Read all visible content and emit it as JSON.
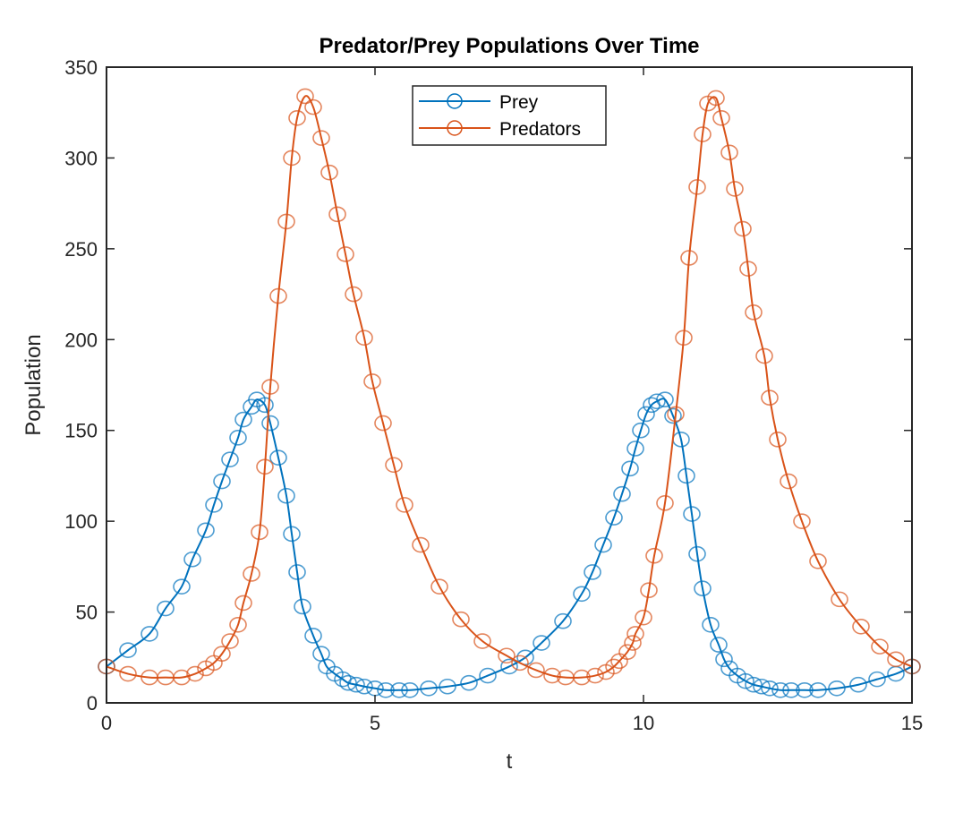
{
  "chart_data": {
    "type": "line",
    "title": "Predator/Prey Populations Over Time",
    "xlabel": "t",
    "ylabel": "Population",
    "xlim": [
      0,
      15
    ],
    "ylim": [
      0,
      350
    ],
    "xticks": [
      0,
      5,
      10,
      15
    ],
    "xtick_labels": [
      "0",
      "5",
      "10",
      "15"
    ],
    "yticks": [
      0,
      50,
      100,
      150,
      200,
      250,
      300,
      350
    ],
    "ytick_labels": [
      "0",
      "50",
      "100",
      "150",
      "200",
      "250",
      "300",
      "350"
    ],
    "grid": false,
    "legend": {
      "position": "top-center",
      "entries": [
        "Prey",
        "Predators"
      ]
    },
    "series": [
      {
        "name": "Prey",
        "color": "#0072BD",
        "marker": "circle",
        "x": [
          0,
          0.4,
          0.8,
          1.1,
          1.4,
          1.6,
          1.85,
          2.0,
          2.15,
          2.3,
          2.45,
          2.55,
          2.7,
          2.8,
          2.95,
          3.05,
          3.2,
          3.35,
          3.45,
          3.55,
          3.65,
          3.85,
          4.0,
          4.1,
          4.25,
          4.4,
          4.5,
          4.65,
          4.8,
          5.0,
          5.2,
          5.45,
          5.65,
          6.0,
          6.35,
          6.75,
          7.1,
          7.5,
          7.8,
          8.1,
          8.5,
          8.85,
          9.05,
          9.25,
          9.45,
          9.6,
          9.75,
          9.85,
          9.95,
          10.05,
          10.15,
          10.25,
          10.4,
          10.55,
          10.7,
          10.8,
          10.9,
          11.0,
          11.1,
          11.25,
          11.4,
          11.5,
          11.6,
          11.75,
          11.9,
          12.05,
          12.2,
          12.35,
          12.55,
          12.75,
          13.0,
          13.25,
          13.6,
          14.0,
          14.35,
          14.7,
          15
        ],
        "y": [
          20,
          29,
          38,
          52,
          64,
          79,
          95,
          109,
          122,
          134,
          146,
          156,
          163,
          167,
          164,
          154,
          135,
          114,
          93,
          72,
          53,
          37,
          27,
          20,
          16,
          13,
          11,
          10,
          9,
          8,
          7,
          7,
          7,
          8,
          9,
          11,
          15,
          20,
          25,
          33,
          45,
          60,
          72,
          87,
          102,
          115,
          129,
          140,
          150,
          159,
          164,
          166,
          167,
          158,
          145,
          125,
          104,
          82,
          63,
          43,
          32,
          24,
          19,
          15,
          12,
          10,
          9,
          8,
          7,
          7,
          7,
          7,
          8,
          10,
          13,
          16,
          20
        ]
      },
      {
        "name": "Predators",
        "color": "#D95319",
        "marker": "circle",
        "x": [
          0,
          0.4,
          0.8,
          1.1,
          1.4,
          1.65,
          1.85,
          2.0,
          2.15,
          2.3,
          2.45,
          2.55,
          2.7,
          2.85,
          2.95,
          3.05,
          3.2,
          3.35,
          3.45,
          3.55,
          3.7,
          3.85,
          4.0,
          4.15,
          4.3,
          4.45,
          4.6,
          4.8,
          4.95,
          5.15,
          5.35,
          5.55,
          5.85,
          6.2,
          6.6,
          7.0,
          7.45,
          7.7,
          8.0,
          8.3,
          8.55,
          8.85,
          9.1,
          9.3,
          9.45,
          9.55,
          9.7,
          9.8,
          9.85,
          10.0,
          10.1,
          10.2,
          10.4,
          10.6,
          10.75,
          10.85,
          11.0,
          11.1,
          11.2,
          11.35,
          11.45,
          11.6,
          11.7,
          11.85,
          11.95,
          12.05,
          12.25,
          12.35,
          12.5,
          12.7,
          12.95,
          13.25,
          13.65,
          14.05,
          14.4,
          14.7,
          15
        ],
        "y": [
          20,
          16,
          14,
          14,
          14,
          16,
          19,
          22,
          27,
          34,
          43,
          55,
          71,
          94,
          130,
          174,
          224,
          265,
          300,
          322,
          334,
          328,
          311,
          292,
          269,
          247,
          225,
          201,
          177,
          154,
          131,
          109,
          87,
          64,
          46,
          34,
          26,
          22,
          18,
          15,
          14,
          14,
          15,
          17,
          20,
          23,
          28,
          33,
          38,
          47,
          62,
          81,
          110,
          159,
          201,
          245,
          284,
          313,
          330,
          333,
          322,
          303,
          283,
          261,
          239,
          215,
          191,
          168,
          145,
          122,
          100,
          78,
          57,
          42,
          31,
          24,
          20
        ]
      }
    ]
  }
}
